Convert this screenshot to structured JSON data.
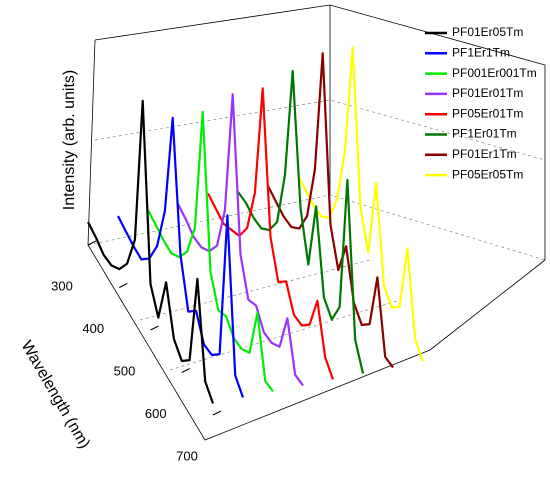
{
  "chart_data": {
    "type": "waterfall3d",
    "ylabel": "Intensity (arb. units)",
    "xlabel": "Wavelength (nm)",
    "x": [
      300,
      325,
      350,
      375,
      400,
      425,
      450,
      475,
      500,
      525,
      550,
      575,
      600,
      625,
      650,
      675,
      700
    ],
    "xlim": [
      300,
      700
    ],
    "xticks": [
      300,
      400,
      500,
      600,
      700
    ],
    "ylim": [
      0,
      1
    ],
    "series": [
      {
        "name": "PF01Er05Tm",
        "color": "#000000",
        "values": [
          0.1,
          0.08,
          0.05,
          0.05,
          0.08,
          0.15,
          0.3,
          0.95,
          0.2,
          0.1,
          0.3,
          0.1,
          0.05,
          0.1,
          0.5,
          0.1,
          0.05
        ]
      },
      {
        "name": "PF1Er1Tm",
        "color": "#0000ff",
        "values": [
          0.1,
          0.08,
          0.06,
          0.05,
          0.1,
          0.2,
          0.4,
          0.85,
          0.3,
          0.1,
          0.15,
          0.05,
          0.05,
          0.1,
          0.75,
          0.1,
          0.05
        ]
      },
      {
        "name": "PF001Er001Tm",
        "color": "#00ee00",
        "values": [
          0.1,
          0.08,
          0.06,
          0.05,
          0.08,
          0.15,
          0.3,
          0.85,
          0.2,
          0.08,
          0.1,
          0.05,
          0.05,
          0.08,
          0.3,
          0.05,
          0.05
        ]
      },
      {
        "name": "PF01Er01Tm",
        "color": "#9933ff",
        "values": [
          0.1,
          0.08,
          0.05,
          0.05,
          0.08,
          0.15,
          0.35,
          0.9,
          0.25,
          0.1,
          0.12,
          0.05,
          0.05,
          0.08,
          0.25,
          0.05,
          0.05
        ]
      },
      {
        "name": "PF05Er01Tm",
        "color": "#ff0000",
        "values": [
          0.12,
          0.1,
          0.08,
          0.1,
          0.12,
          0.2,
          0.4,
          0.9,
          0.3,
          0.15,
          0.2,
          0.1,
          0.1,
          0.15,
          0.3,
          0.1,
          0.05
        ]
      },
      {
        "name": "PF1Er01Tm",
        "color": "#007700",
        "values": [
          0.1,
          0.1,
          0.08,
          0.08,
          0.12,
          0.2,
          0.45,
          0.95,
          0.4,
          0.2,
          0.5,
          0.15,
          0.1,
          0.2,
          0.8,
          0.15,
          0.05
        ]
      },
      {
        "name": "PF01Er1Tm",
        "color": "#880000",
        "values": [
          0.1,
          0.08,
          0.06,
          0.06,
          0.1,
          0.2,
          0.45,
          1.0,
          0.3,
          0.15,
          0.3,
          0.1,
          0.05,
          0.1,
          0.35,
          0.05,
          0.05
        ]
      },
      {
        "name": "PF05Er05Tm",
        "color": "#ffff00",
        "values": [
          0.12,
          0.1,
          0.08,
          0.08,
          0.12,
          0.25,
          0.5,
          1.0,
          0.35,
          0.2,
          0.55,
          0.15,
          0.1,
          0.15,
          0.45,
          0.1,
          0.05
        ]
      }
    ]
  }
}
